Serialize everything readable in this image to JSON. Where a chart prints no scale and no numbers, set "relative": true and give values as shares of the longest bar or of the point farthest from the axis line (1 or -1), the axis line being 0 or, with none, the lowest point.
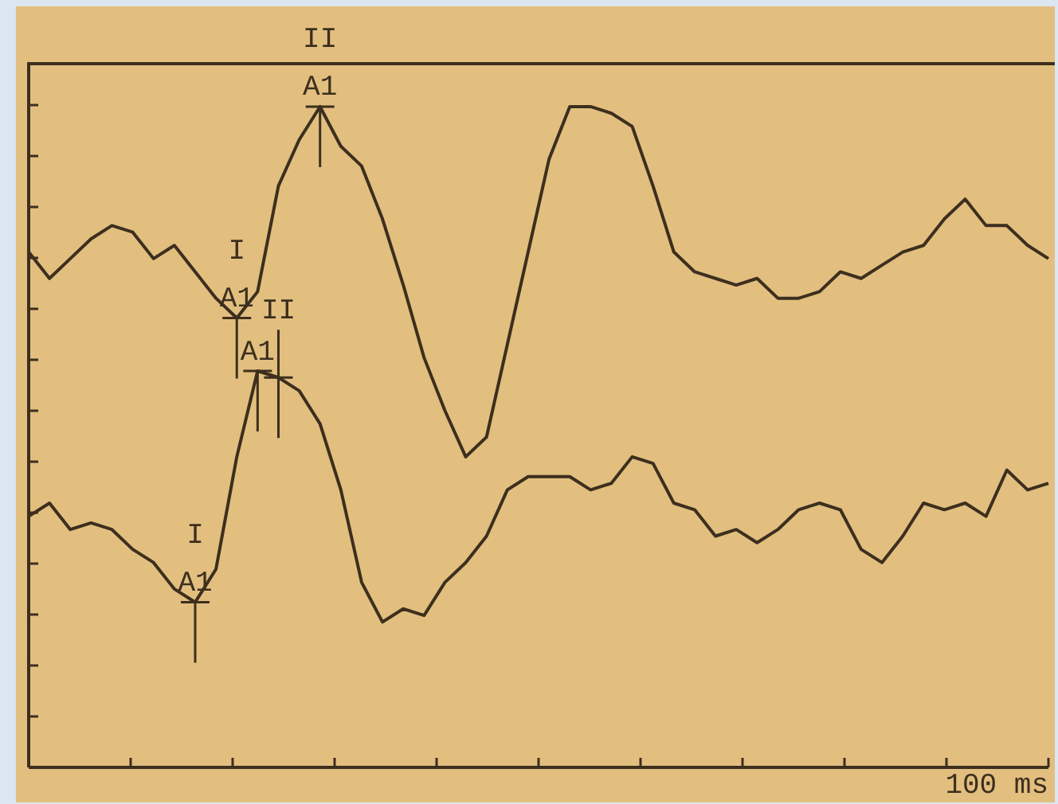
{
  "chart_data": {
    "type": "line",
    "relative": true,
    "legend": false,
    "marker": "none",
    "line_style": "solid",
    "categories": [
      null,
      null,
      null,
      null,
      null,
      null,
      null,
      null,
      null,
      null,
      null,
      null,
      null,
      null,
      null,
      null,
      null,
      null,
      null,
      null,
      null,
      null,
      null,
      null,
      null,
      null,
      null,
      null,
      null,
      null,
      null,
      null,
      null,
      null,
      null,
      null,
      null,
      null,
      null,
      null,
      null,
      null,
      null,
      null,
      null,
      null,
      null,
      null,
      null,
      null
    ],
    "series": [
      {
        "color": "#3d2f1e",
        "values": [
          0.78,
          0.74,
          0.77,
          0.8,
          0.82,
          0.81,
          0.77,
          0.79,
          0.75,
          0.71,
          0.68,
          0.72,
          0.88,
          0.95,
          1.0,
          0.94,
          0.91,
          0.83,
          0.73,
          0.62,
          0.54,
          0.47,
          0.5,
          0.64,
          0.78,
          0.92,
          1.0,
          1.0,
          0.99,
          0.97,
          0.88,
          0.78,
          0.75,
          0.74,
          0.73,
          0.74,
          0.71,
          0.71,
          0.72,
          0.75,
          0.74,
          0.76,
          0.78,
          0.79,
          0.83,
          0.86,
          0.82,
          0.82,
          0.79,
          0.77
        ]
      },
      {
        "color": "#3d2f1e",
        "values": [
          0.38,
          0.4,
          0.36,
          0.37,
          0.36,
          0.33,
          0.31,
          0.27,
          0.25,
          0.3,
          0.47,
          0.6,
          0.59,
          0.57,
          0.52,
          0.42,
          0.28,
          0.22,
          0.24,
          0.23,
          0.28,
          0.31,
          0.35,
          0.42,
          0.44,
          0.44,
          0.44,
          0.42,
          0.43,
          0.47,
          0.46,
          0.4,
          0.39,
          0.35,
          0.36,
          0.34,
          0.36,
          0.39,
          0.4,
          0.39,
          0.33,
          0.31,
          0.35,
          0.4,
          0.39,
          0.4,
          0.38,
          0.45,
          0.42,
          0.43
        ]
      }
    ],
    "annotations": [
      "100 ms",
      {
        "text": "A1",
        "y": 1.0
      },
      {
        "text": "II",
        "y": 1.0
      },
      {
        "text": "A1",
        "y": 0.68
      },
      {
        "text": "I",
        "y": 0.68
      },
      {
        "text": "A1",
        "y": 0.6
      },
      {
        "text": "II",
        "y": 0.59
      },
      {
        "text": "A1",
        "y": 0.25
      },
      {
        "text": "I",
        "y": 0.25
      }
    ]
  }
}
